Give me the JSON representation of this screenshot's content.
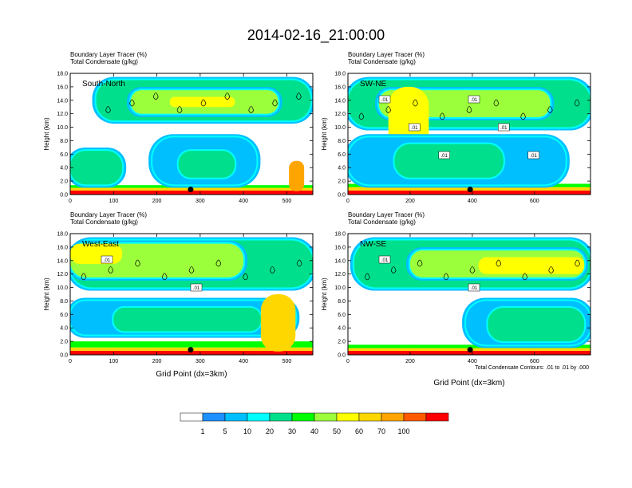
{
  "title": "2014-02-16_21:00:00",
  "chart_data": [
    {
      "type": "heatmap",
      "panel_label": "South-North",
      "subtitle_1": "Boundary Layer Tracer    (%)",
      "subtitle_2": "Total Condensate    (g/kg)",
      "ylabel": "Height (km)",
      "xlabel": "",
      "xlim": [
        0,
        560
      ],
      "ylim": [
        0,
        18
      ],
      "xticks": [
        "0",
        "100",
        "200",
        "300",
        "400",
        "500"
      ],
      "yticks": [
        "0.0",
        "2.0",
        "4.0",
        "6.0",
        "8.0",
        "10.0",
        "12.0",
        "14.0",
        "16.0",
        "18.0"
      ],
      "marker_x": 278,
      "contour_labels": [],
      "regions": [
        {
          "x": [
            0,
            560
          ],
          "y": [
            0,
            0.6
          ],
          "level": 100
        },
        {
          "x": [
            0,
            560
          ],
          "y": [
            0.6,
            1.0
          ],
          "level": 60
        },
        {
          "x": [
            0,
            560
          ],
          "y": [
            1.0,
            1.4
          ],
          "level": 30
        },
        {
          "x": [
            60,
            555
          ],
          "y": [
            11.0,
            17.0
          ],
          "level": 20
        },
        {
          "x": [
            140,
            480
          ],
          "y": [
            12.0,
            15.5
          ],
          "level": 40
        },
        {
          "x": [
            230,
            380
          ],
          "y": [
            13.0,
            14.5
          ],
          "level": 50
        },
        {
          "x": [
            0,
            120
          ],
          "y": [
            1.5,
            6.5
          ],
          "level": 20
        },
        {
          "x": [
            190,
            430
          ],
          "y": [
            1.5,
            8.5
          ],
          "level": 5
        },
        {
          "x": [
            250,
            380
          ],
          "y": [
            2.5,
            6.5
          ],
          "level": 20
        },
        {
          "x": [
            505,
            540
          ],
          "y": [
            0.5,
            5.0
          ],
          "level": 70
        }
      ]
    },
    {
      "type": "heatmap",
      "panel_label": "SW-NE",
      "subtitle_1": "Boundary Layer Tracer    (%)",
      "subtitle_2": "Total Condensate    (g/kg)",
      "ylabel": "Height (km)",
      "xlabel": "",
      "xlim": [
        0,
        780
      ],
      "ylim": [
        0,
        18
      ],
      "xticks": [
        "0",
        "200",
        "400",
        "600"
      ],
      "yticks": [
        "0.0",
        "2.0",
        "4.0",
        "6.0",
        "8.0",
        "10.0",
        "12.0",
        "14.0",
        "16.0",
        "18.0"
      ],
      "marker_x": 393,
      "contour_labels": [
        ".01",
        ".01",
        ".01",
        ".01",
        ".01",
        ".01"
      ],
      "regions": [
        {
          "x": [
            0,
            780
          ],
          "y": [
            0,
            0.6
          ],
          "level": 100
        },
        {
          "x": [
            0,
            780
          ],
          "y": [
            0.6,
            1.1
          ],
          "level": 60
        },
        {
          "x": [
            0,
            780
          ],
          "y": [
            1.1,
            1.6
          ],
          "level": 30
        },
        {
          "x": [
            0,
            780
          ],
          "y": [
            10.0,
            17.0
          ],
          "level": 20
        },
        {
          "x": [
            100,
            650
          ],
          "y": [
            11.5,
            15.5
          ],
          "level": 40
        },
        {
          "x": [
            130,
            260
          ],
          "y": [
            2.0,
            16.0
          ],
          "level": 50
        },
        {
          "x": [
            0,
            700
          ],
          "y": [
            1.5,
            8.5
          ],
          "level": 5
        },
        {
          "x": [
            150,
            500
          ],
          "y": [
            2.5,
            7.5
          ],
          "level": 20
        }
      ]
    },
    {
      "type": "heatmap",
      "panel_label": "West-East",
      "subtitle_1": "Boundary Layer Tracer    (%)",
      "subtitle_2": "Total Condensate    (g/kg)",
      "ylabel": "Height (km)",
      "xlabel": "Grid Point (dx=3km)",
      "xlim": [
        0,
        560
      ],
      "ylim": [
        0,
        18
      ],
      "xticks": [
        "0",
        "100",
        "200",
        "300",
        "400",
        "500"
      ],
      "yticks": [
        "0.0",
        "2.0",
        "4.0",
        "6.0",
        "8.0",
        "10.0",
        "12.0",
        "14.0",
        "16.0",
        "18.0"
      ],
      "marker_x": 278,
      "contour_labels": [
        ".01",
        ".01"
      ],
      "regions": [
        {
          "x": [
            0,
            560
          ],
          "y": [
            0,
            0.6
          ],
          "level": 100
        },
        {
          "x": [
            0,
            560
          ],
          "y": [
            0.6,
            1.1
          ],
          "level": 60
        },
        {
          "x": [
            0,
            560
          ],
          "y": [
            1.1,
            2.0
          ],
          "level": 30
        },
        {
          "x": [
            0,
            560
          ],
          "y": [
            10.0,
            17.0
          ],
          "level": 20
        },
        {
          "x": [
            0,
            400
          ],
          "y": [
            11.5,
            16.5
          ],
          "level": 40
        },
        {
          "x": [
            0,
            120
          ],
          "y": [
            13.5,
            16.5
          ],
          "level": 50
        },
        {
          "x": [
            0,
            520
          ],
          "y": [
            3.0,
            8.0
          ],
          "level": 5
        },
        {
          "x": [
            100,
            440
          ],
          "y": [
            3.5,
            7.0
          ],
          "level": 20
        },
        {
          "x": [
            440,
            520
          ],
          "y": [
            0.5,
            9.0
          ],
          "level": 60
        }
      ]
    },
    {
      "type": "heatmap",
      "panel_label": "NW-SE",
      "subtitle_1": "Boundary Layer Tracer    (%)",
      "subtitle_2": "Total Condensate    (g/kg)",
      "ylabel": "Height (km)",
      "xlabel": "Grid Point (dx=3km)",
      "xlim": [
        0,
        780
      ],
      "ylim": [
        0,
        18
      ],
      "xticks": [
        "0",
        "200",
        "400",
        "600"
      ],
      "yticks": [
        "0.0",
        "2.0",
        "4.0",
        "6.0",
        "8.0",
        "10.0",
        "12.0",
        "14.0",
        "16.0",
        "18.0"
      ],
      "marker_x": 393,
      "contour_labels": [
        ".01",
        ".01"
      ],
      "regions": [
        {
          "x": [
            0,
            780
          ],
          "y": [
            0,
            0.6
          ],
          "level": 100
        },
        {
          "x": [
            0,
            780
          ],
          "y": [
            0.6,
            1.0
          ],
          "level": 60
        },
        {
          "x": [
            0,
            780
          ],
          "y": [
            1.0,
            1.5
          ],
          "level": 30
        },
        {
          "x": [
            20,
            780
          ],
          "y": [
            10.0,
            17.0
          ],
          "level": 20
        },
        {
          "x": [
            200,
            760
          ],
          "y": [
            11.5,
            15.5
          ],
          "level": 40
        },
        {
          "x": [
            420,
            760
          ],
          "y": [
            12.0,
            14.5
          ],
          "level": 50
        },
        {
          "x": [
            380,
            780
          ],
          "y": [
            1.5,
            8.0
          ],
          "level": 5
        },
        {
          "x": [
            450,
            760
          ],
          "y": [
            2.0,
            7.0
          ],
          "level": 20
        }
      ]
    }
  ],
  "footnote": "Total Condensate Contours: .01 to .01 by .000",
  "colorbar": {
    "labels": [
      "1",
      "5",
      "10",
      "20",
      "30",
      "40",
      "50",
      "60",
      "70",
      "100"
    ],
    "colors": [
      "#ffffff",
      "#1e90ff",
      "#00bfff",
      "#00ffff",
      "#00e08c",
      "#00ff00",
      "#9cff3c",
      "#ffff00",
      "#ffd700",
      "#ffa500",
      "#ff5a00",
      "#ff0000"
    ]
  }
}
